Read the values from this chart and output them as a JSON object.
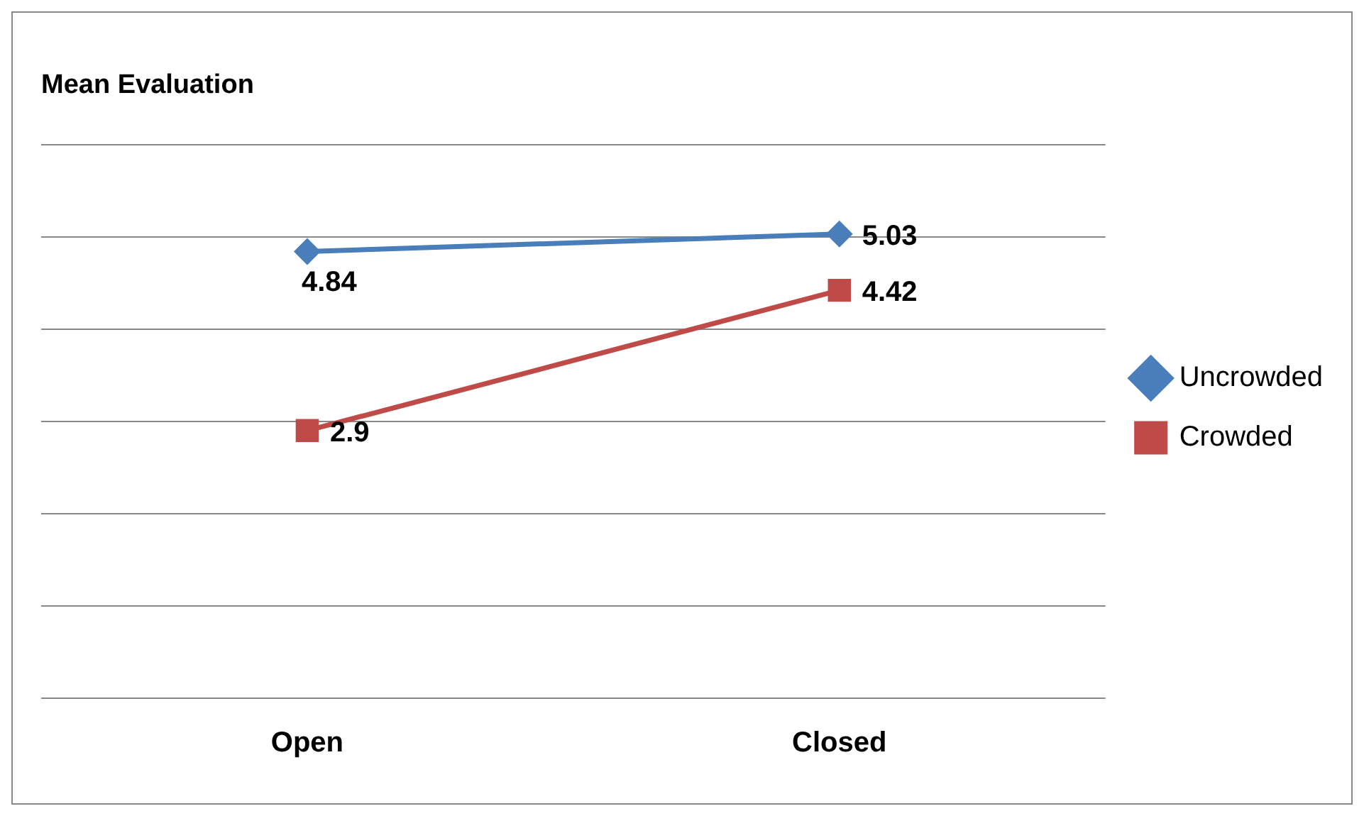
{
  "chart_data": {
    "type": "line",
    "title": "Mean Evaluation",
    "categories": [
      "Open",
      "Closed"
    ],
    "series": [
      {
        "name": "Uncrowded",
        "color": "#4a7ebb",
        "values": [
          4.84,
          5.03
        ],
        "marker": "diamond"
      },
      {
        "name": "Crowded",
        "color": "#be4b48",
        "values": [
          2.9,
          4.42
        ],
        "marker": "square"
      }
    ],
    "ylim": [
      0,
      6
    ],
    "yticks": [
      {
        "value": 0,
        "label": null
      },
      {
        "value": 1,
        "label": null
      },
      {
        "value": 2,
        "label": null
      },
      {
        "value": 3,
        "label": null
      },
      {
        "value": 4,
        "label": null
      },
      {
        "value": 5,
        "label": null
      },
      {
        "value": 6,
        "label": null
      }
    ],
    "tick_labels": "x",
    "grid": "y",
    "legend": "right",
    "data_labels": true,
    "line_style": "solid"
  }
}
